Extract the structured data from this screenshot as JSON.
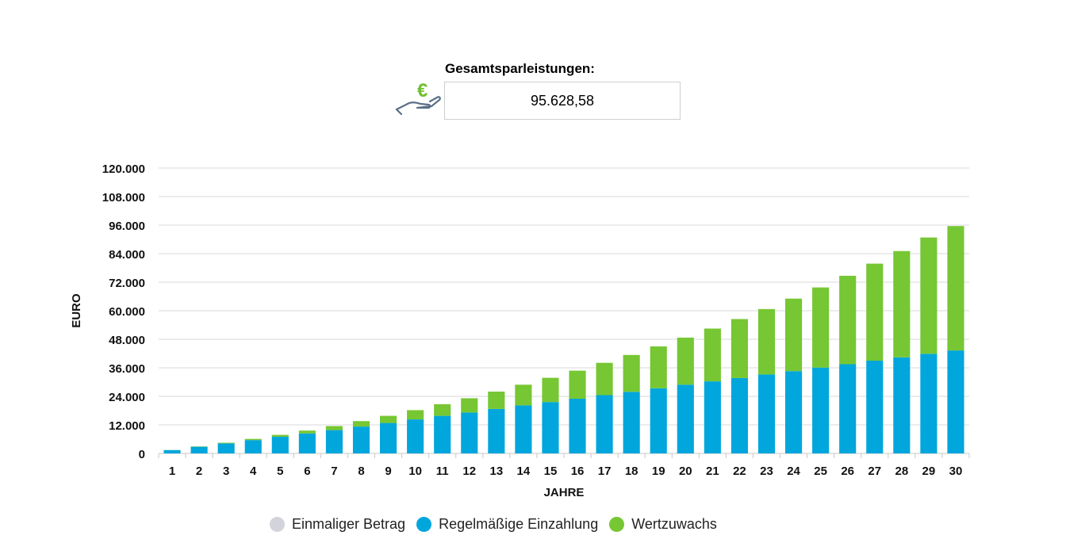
{
  "summary": {
    "label": "Gesamtsparleistungen:",
    "value": "95.628,58",
    "icon": "euro-hand-icon"
  },
  "colors": {
    "einmalig": "#d3d3dc",
    "regelmaessig": "#00a6dc",
    "wertzuwachs": "#76c733",
    "grid": "#d9d9d9",
    "euro_symbol": "#6fbf2d",
    "hand_outline": "#5b6f86"
  },
  "chart_data": {
    "type": "bar",
    "stacked": true,
    "xlabel": "JAHRE",
    "ylabel": "EURO",
    "ylim": [
      0,
      120000
    ],
    "yticks": [
      0,
      12000,
      24000,
      36000,
      48000,
      60000,
      72000,
      84000,
      96000,
      108000,
      120000
    ],
    "ytick_labels": [
      "0",
      "12.000",
      "24.000",
      "36.000",
      "48.000",
      "60.000",
      "72.000",
      "84.000",
      "96.000",
      "108.000",
      "120.000"
    ],
    "grid": true,
    "legend_position": "bottom",
    "categories": [
      "1",
      "2",
      "3",
      "4",
      "5",
      "6",
      "7",
      "8",
      "9",
      "10",
      "11",
      "12",
      "13",
      "14",
      "15",
      "16",
      "17",
      "18",
      "19",
      "20",
      "21",
      "22",
      "23",
      "24",
      "25",
      "26",
      "27",
      "28",
      "29",
      "30"
    ],
    "series": [
      {
        "name": "Einmaliger Betrag",
        "values": [
          0,
          0,
          0,
          0,
          0,
          0,
          0,
          0,
          0,
          0,
          0,
          0,
          0,
          0,
          0,
          0,
          0,
          0,
          0,
          0,
          0,
          0,
          0,
          0,
          0,
          0,
          0,
          0,
          0,
          0
        ]
      },
      {
        "name": "Regelmäßige Einzahlung",
        "values": [
          1400,
          2800,
          4200,
          5600,
          7000,
          8400,
          9800,
          11300,
          12800,
          14300,
          15800,
          17200,
          18700,
          20200,
          21600,
          23000,
          24500,
          25900,
          27400,
          28900,
          30300,
          31700,
          33200,
          34600,
          36100,
          37500,
          39000,
          40400,
          41900,
          43300
        ]
      },
      {
        "name": "Wertzuwachs",
        "values": [
          40,
          140,
          300,
          500,
          800,
          1200,
          1700,
          2300,
          3000,
          3900,
          4900,
          6000,
          7300,
          8700,
          10200,
          11800,
          13600,
          15500,
          17600,
          19800,
          22200,
          24800,
          27500,
          30500,
          33700,
          37200,
          40800,
          44700,
          48900,
          52300
        ]
      }
    ]
  }
}
